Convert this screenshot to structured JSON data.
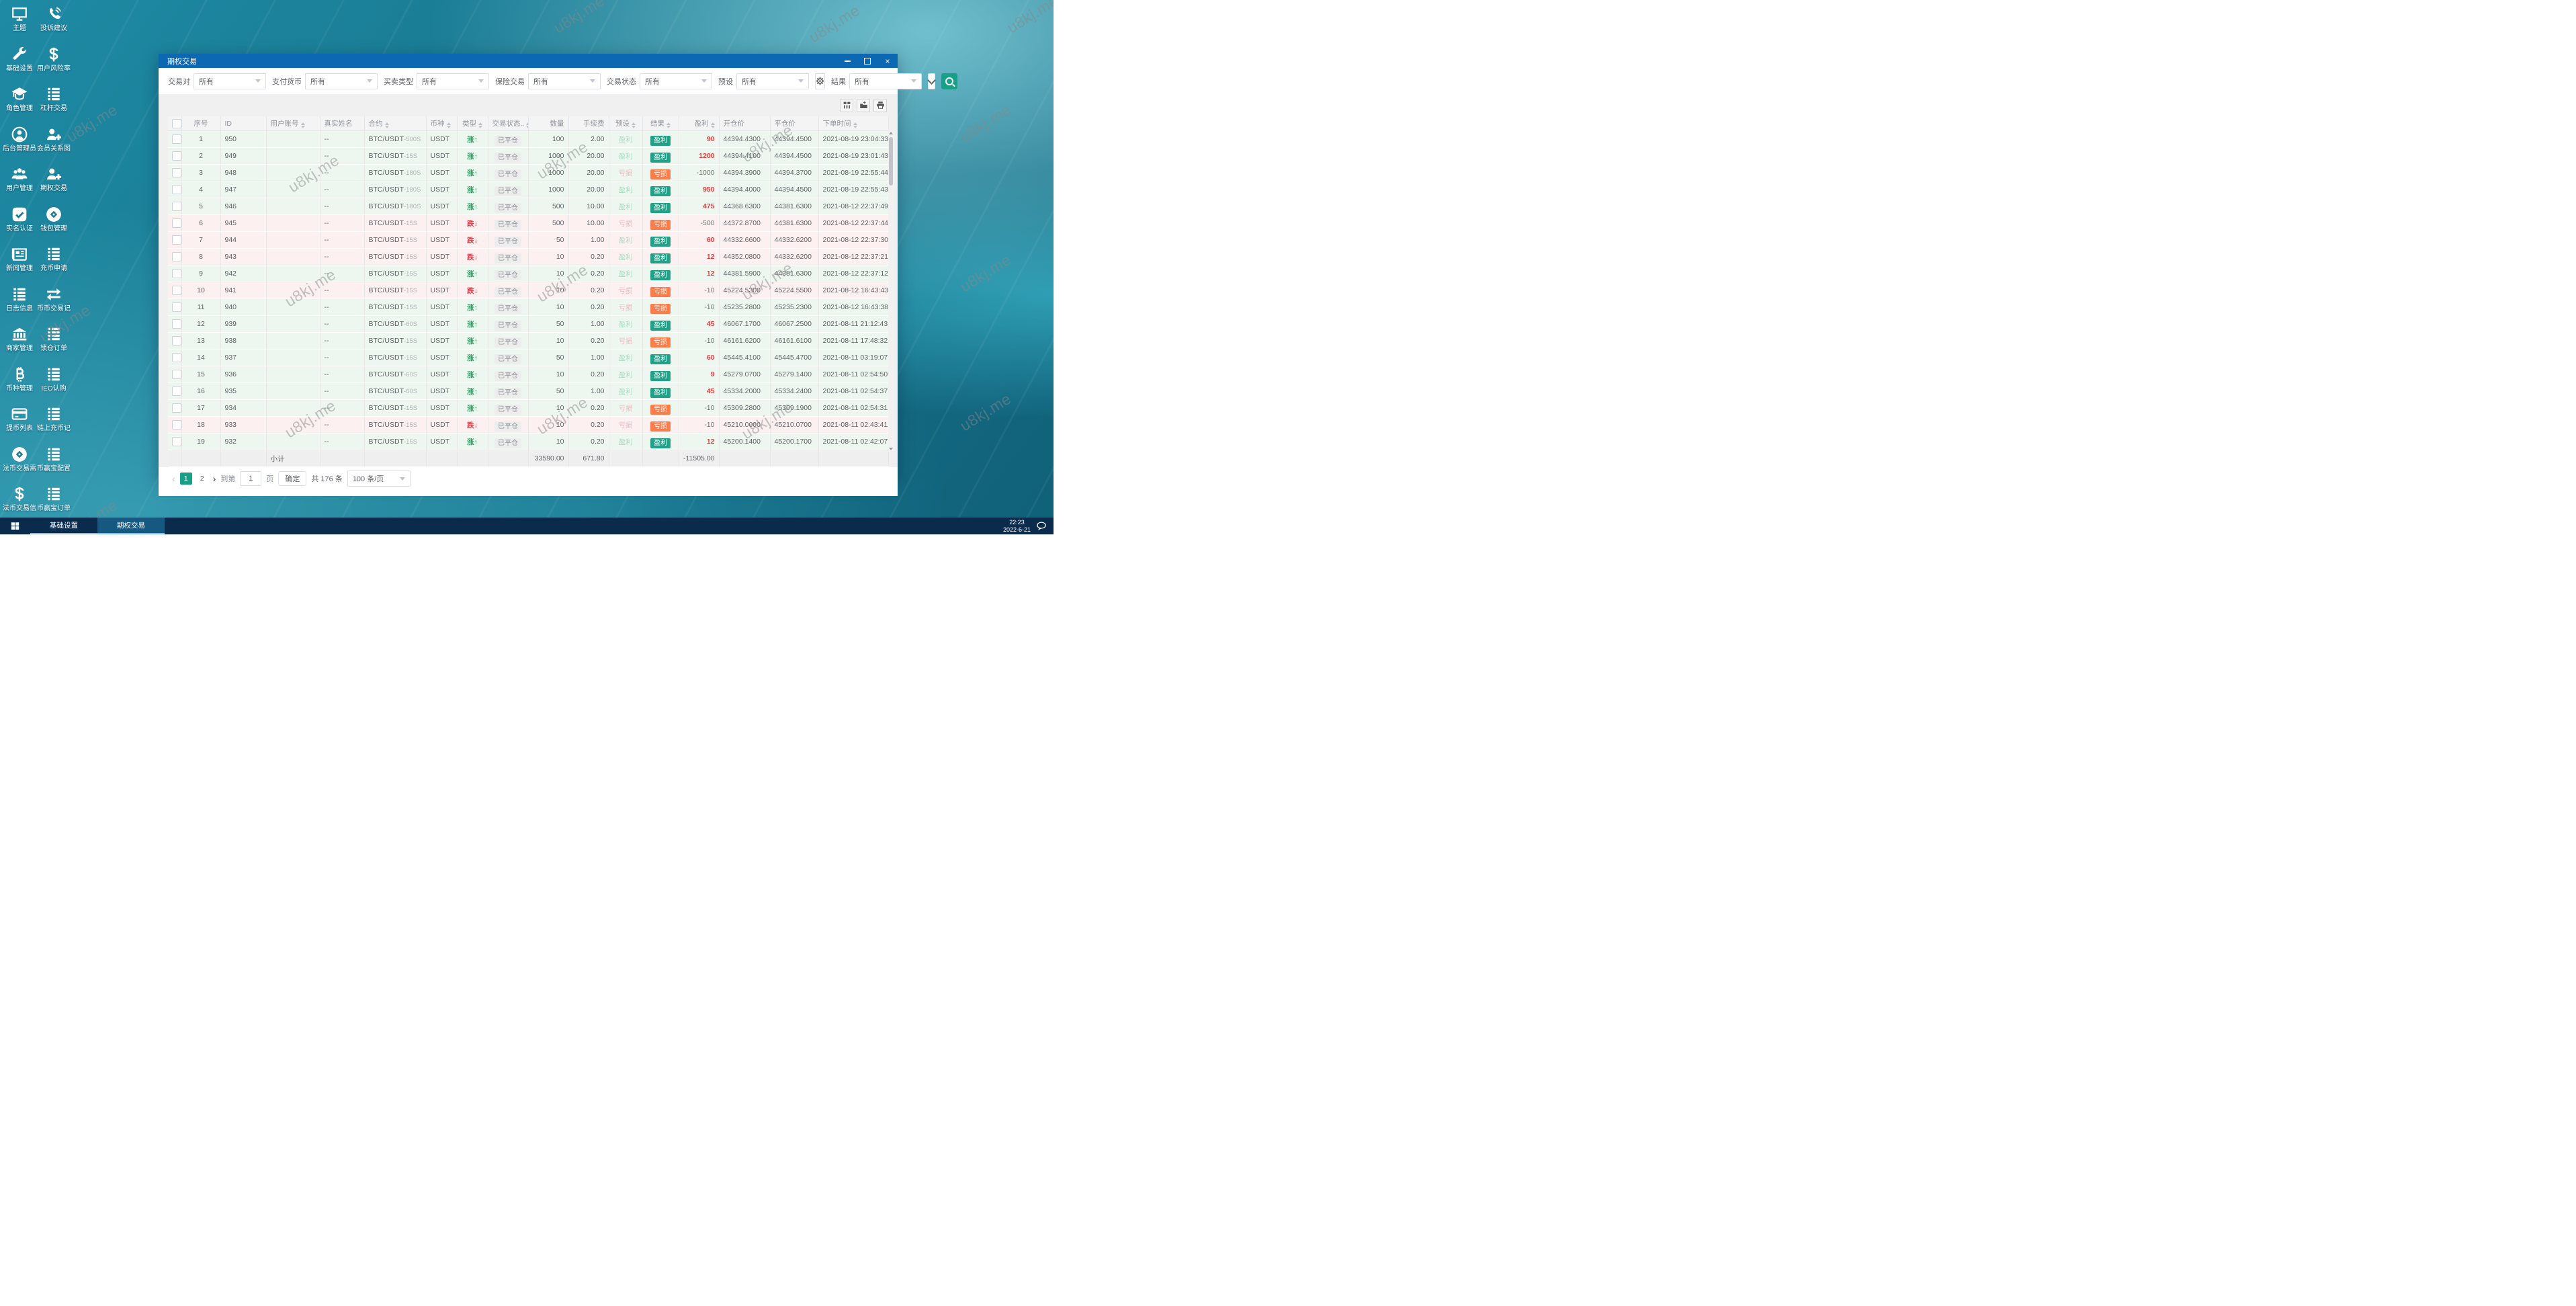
{
  "watermark": {
    "text": "u8kj.me"
  },
  "desktop": {
    "columns": [
      {
        "items": [
          {
            "label": "主题",
            "icon": "monitor"
          },
          {
            "label": "基础设置",
            "icon": "wrench"
          },
          {
            "label": "角色管理",
            "icon": "gradcap"
          },
          {
            "label": "后台管理员",
            "icon": "user-circle"
          },
          {
            "label": "用户管理",
            "icon": "users"
          },
          {
            "label": "实名认证",
            "icon": "check-square"
          },
          {
            "label": "新闻管理",
            "icon": "news"
          },
          {
            "label": "日志信息",
            "icon": "list"
          },
          {
            "label": "商家管理",
            "icon": "bank"
          },
          {
            "label": "币种管理",
            "icon": "bitcoin"
          },
          {
            "label": "提币列表",
            "icon": "card"
          },
          {
            "label": "法币交易需",
            "icon": "coin"
          },
          {
            "label": "法币交易信",
            "icon": "dollar"
          }
        ]
      },
      {
        "items": [
          {
            "label": "投诉建议",
            "icon": "phone"
          },
          {
            "label": "用户风险率",
            "icon": "dollar"
          },
          {
            "label": "杠杆交易",
            "icon": "list"
          },
          {
            "label": "会员关系图",
            "icon": "user-plus"
          },
          {
            "label": "期权交易",
            "icon": "user-plus"
          },
          {
            "label": "钱包管理",
            "icon": "coin"
          },
          {
            "label": "充币申请",
            "icon": "list"
          },
          {
            "label": "币币交易记",
            "icon": "swap"
          },
          {
            "label": "锁仓订单",
            "icon": "list"
          },
          {
            "label": "IEO认购",
            "icon": "list"
          },
          {
            "label": "链上充币记",
            "icon": "list"
          },
          {
            "label": "币赢宝配置",
            "icon": "list"
          },
          {
            "label": "币赢宝订单",
            "icon": "list"
          }
        ]
      }
    ]
  },
  "window": {
    "title": "期权交易"
  },
  "filters": [
    {
      "label": "交易对",
      "value": "所有"
    },
    {
      "label": "支付货币",
      "value": "所有"
    },
    {
      "label": "买卖类型",
      "value": "所有"
    },
    {
      "label": "保险交易",
      "value": "所有"
    },
    {
      "label": "交易状态",
      "value": "所有"
    },
    {
      "label": "预设",
      "value": "所有"
    },
    {
      "label": "结果",
      "value": "所有"
    }
  ],
  "table": {
    "headers": [
      {
        "label": "序号",
        "sortable": false,
        "align": "ac"
      },
      {
        "label": "ID",
        "sortable": false,
        "align": "al"
      },
      {
        "label": "用户账号",
        "sortable": true,
        "align": "al"
      },
      {
        "label": "真实姓名",
        "sortable": false,
        "align": "al"
      },
      {
        "label": "合约",
        "sortable": true,
        "align": "al"
      },
      {
        "label": "币种",
        "sortable": true,
        "align": "al"
      },
      {
        "label": "类型",
        "sortable": true,
        "align": "ac"
      },
      {
        "label": "交易状态..",
        "sortable": true,
        "align": "ac"
      },
      {
        "label": "数量",
        "sortable": false,
        "align": "ar"
      },
      {
        "label": "手续费",
        "sortable": false,
        "align": "ar"
      },
      {
        "label": "预设",
        "sortable": true,
        "align": "ac"
      },
      {
        "label": "结果",
        "sortable": true,
        "align": "ac"
      },
      {
        "label": "盈利",
        "sortable": true,
        "align": "ar"
      },
      {
        "label": "开仓价",
        "sortable": false,
        "align": "al"
      },
      {
        "label": "平仓价",
        "sortable": false,
        "align": "al"
      },
      {
        "label": "下单时间",
        "sortable": true,
        "align": "al"
      }
    ],
    "rows": [
      {
        "seq": "1",
        "id": "950",
        "account": "",
        "name": "--",
        "contract": "BTC/USDT",
        "contract_suffix": "-500S",
        "currency": "USDT",
        "type_label": "涨↑",
        "direction": "up",
        "status": "已平仓",
        "quantity": "100",
        "fee": "2.00",
        "preset": "盈利",
        "result": "盈利",
        "profit": "90",
        "open_price": "44394.4300",
        "close_price": "44394.4500",
        "time": "2021-08-19 23:04:33"
      },
      {
        "seq": "2",
        "id": "949",
        "account": "",
        "name": "--",
        "contract": "BTC/USDT",
        "contract_suffix": "-15S",
        "currency": "USDT",
        "type_label": "涨↑",
        "direction": "up",
        "status": "已平仓",
        "quantity": "1000",
        "fee": "20.00",
        "preset": "盈利",
        "result": "盈利",
        "profit": "1200",
        "open_price": "44394.4100",
        "close_price": "44394.4500",
        "time": "2021-08-19 23:01:43"
      },
      {
        "seq": "3",
        "id": "948",
        "account": "",
        "name": "--",
        "contract": "BTC/USDT",
        "contract_suffix": "-180S",
        "currency": "USDT",
        "type_label": "涨↑",
        "direction": "up",
        "status": "已平仓",
        "quantity": "1000",
        "fee": "20.00",
        "preset": "亏损",
        "result": "亏损",
        "profit": "-1000",
        "open_price": "44394.3900",
        "close_price": "44394.3700",
        "time": "2021-08-19 22:55:44"
      },
      {
        "seq": "4",
        "id": "947",
        "account": "",
        "name": "--",
        "contract": "BTC/USDT",
        "contract_suffix": "-180S",
        "currency": "USDT",
        "type_label": "涨↑",
        "direction": "up",
        "status": "已平仓",
        "quantity": "1000",
        "fee": "20.00",
        "preset": "盈利",
        "result": "盈利",
        "profit": "950",
        "open_price": "44394.4000",
        "close_price": "44394.4500",
        "time": "2021-08-19 22:55:43"
      },
      {
        "seq": "5",
        "id": "946",
        "account": "",
        "name": "--",
        "contract": "BTC/USDT",
        "contract_suffix": "-180S",
        "currency": "USDT",
        "type_label": "涨↑",
        "direction": "up",
        "status": "已平仓",
        "quantity": "500",
        "fee": "10.00",
        "preset": "盈利",
        "result": "盈利",
        "profit": "475",
        "open_price": "44368.6300",
        "close_price": "44381.6300",
        "time": "2021-08-12 22:37:49"
      },
      {
        "seq": "6",
        "id": "945",
        "account": "",
        "name": "--",
        "contract": "BTC/USDT",
        "contract_suffix": "-15S",
        "currency": "USDT",
        "type_label": "跌↓",
        "direction": "down",
        "status": "已平仓",
        "quantity": "500",
        "fee": "10.00",
        "preset": "亏损",
        "result": "亏损",
        "profit": "-500",
        "open_price": "44372.8700",
        "close_price": "44381.6300",
        "time": "2021-08-12 22:37:44"
      },
      {
        "seq": "7",
        "id": "944",
        "account": "",
        "name": "--",
        "contract": "BTC/USDT",
        "contract_suffix": "-15S",
        "currency": "USDT",
        "type_label": "跌↓",
        "direction": "down",
        "status": "已平仓",
        "quantity": "50",
        "fee": "1.00",
        "preset": "盈利",
        "result": "盈利",
        "profit": "60",
        "open_price": "44332.6600",
        "close_price": "44332.6200",
        "time": "2021-08-12 22:37:30"
      },
      {
        "seq": "8",
        "id": "943",
        "account": "",
        "name": "--",
        "contract": "BTC/USDT",
        "contract_suffix": "-15S",
        "currency": "USDT",
        "type_label": "跌↓",
        "direction": "down",
        "status": "已平仓",
        "quantity": "10",
        "fee": "0.20",
        "preset": "盈利",
        "result": "盈利",
        "profit": "12",
        "open_price": "44352.0800",
        "close_price": "44332.6200",
        "time": "2021-08-12 22:37:21"
      },
      {
        "seq": "9",
        "id": "942",
        "account": "",
        "name": "--",
        "contract": "BTC/USDT",
        "contract_suffix": "-15S",
        "currency": "USDT",
        "type_label": "涨↑",
        "direction": "up",
        "status": "已平仓",
        "quantity": "10",
        "fee": "0.20",
        "preset": "盈利",
        "result": "盈利",
        "profit": "12",
        "open_price": "44381.5900",
        "close_price": "44381.6300",
        "time": "2021-08-12 22:37:12"
      },
      {
        "seq": "10",
        "id": "941",
        "account": "",
        "name": "--",
        "contract": "BTC/USDT",
        "contract_suffix": "-15S",
        "currency": "USDT",
        "type_label": "跌↓",
        "direction": "down",
        "status": "已平仓",
        "quantity": "10",
        "fee": "0.20",
        "preset": "亏损",
        "result": "亏损",
        "profit": "-10",
        "open_price": "45224.5300",
        "close_price": "45224.5500",
        "time": "2021-08-12 16:43:43"
      },
      {
        "seq": "11",
        "id": "940",
        "account": "",
        "name": "--",
        "contract": "BTC/USDT",
        "contract_suffix": "-15S",
        "currency": "USDT",
        "type_label": "涨↑",
        "direction": "up",
        "status": "已平仓",
        "quantity": "10",
        "fee": "0.20",
        "preset": "亏损",
        "result": "亏损",
        "profit": "-10",
        "open_price": "45235.2800",
        "close_price": "45235.2300",
        "time": "2021-08-12 16:43:38"
      },
      {
        "seq": "12",
        "id": "939",
        "account": "",
        "name": "--",
        "contract": "BTC/USDT",
        "contract_suffix": "-60S",
        "currency": "USDT",
        "type_label": "涨↑",
        "direction": "up",
        "status": "已平仓",
        "quantity": "50",
        "fee": "1.00",
        "preset": "盈利",
        "result": "盈利",
        "profit": "45",
        "open_price": "46067.1700",
        "close_price": "46067.2500",
        "time": "2021-08-11 21:12:43"
      },
      {
        "seq": "13",
        "id": "938",
        "account": "",
        "name": "--",
        "contract": "BTC/USDT",
        "contract_suffix": "-15S",
        "currency": "USDT",
        "type_label": "涨↑",
        "direction": "up",
        "status": "已平仓",
        "quantity": "10",
        "fee": "0.20",
        "preset": "亏损",
        "result": "亏损",
        "profit": "-10",
        "open_price": "46161.6200",
        "close_price": "46161.6100",
        "time": "2021-08-11 17:48:32"
      },
      {
        "seq": "14",
        "id": "937",
        "account": "",
        "name": "--",
        "contract": "BTC/USDT",
        "contract_suffix": "-15S",
        "currency": "USDT",
        "type_label": "涨↑",
        "direction": "up",
        "status": "已平仓",
        "quantity": "50",
        "fee": "1.00",
        "preset": "盈利",
        "result": "盈利",
        "profit": "60",
        "open_price": "45445.4100",
        "close_price": "45445.4700",
        "time": "2021-08-11 03:19:07"
      },
      {
        "seq": "15",
        "id": "936",
        "account": "",
        "name": "--",
        "contract": "BTC/USDT",
        "contract_suffix": "-60S",
        "currency": "USDT",
        "type_label": "涨↑",
        "direction": "up",
        "status": "已平仓",
        "quantity": "10",
        "fee": "0.20",
        "preset": "盈利",
        "result": "盈利",
        "profit": "9",
        "open_price": "45279.0700",
        "close_price": "45279.1400",
        "time": "2021-08-11 02:54:50"
      },
      {
        "seq": "16",
        "id": "935",
        "account": "",
        "name": "--",
        "contract": "BTC/USDT",
        "contract_suffix": "-60S",
        "currency": "USDT",
        "type_label": "涨↑",
        "direction": "up",
        "status": "已平仓",
        "quantity": "50",
        "fee": "1.00",
        "preset": "盈利",
        "result": "盈利",
        "profit": "45",
        "open_price": "45334.2000",
        "close_price": "45334.2400",
        "time": "2021-08-11 02:54:37"
      },
      {
        "seq": "17",
        "id": "934",
        "account": "",
        "name": "--",
        "contract": "BTC/USDT",
        "contract_suffix": "-15S",
        "currency": "USDT",
        "type_label": "涨↑",
        "direction": "up",
        "status": "已平仓",
        "quantity": "10",
        "fee": "0.20",
        "preset": "亏损",
        "result": "亏损",
        "profit": "-10",
        "open_price": "45309.2800",
        "close_price": "45309.1900",
        "time": "2021-08-11 02:54:31"
      },
      {
        "seq": "18",
        "id": "933",
        "account": "",
        "name": "--",
        "contract": "BTC/USDT",
        "contract_suffix": "-15S",
        "currency": "USDT",
        "type_label": "跌↓",
        "direction": "down",
        "status": "已平仓",
        "quantity": "10",
        "fee": "0.20",
        "preset": "亏损",
        "result": "亏损",
        "profit": "-10",
        "open_price": "45210.0000",
        "close_price": "45210.0700",
        "time": "2021-08-11 02:43:41"
      },
      {
        "seq": "19",
        "id": "932",
        "account": "",
        "name": "--",
        "contract": "BTC/USDT",
        "contract_suffix": "-15S",
        "currency": "USDT",
        "type_label": "涨↑",
        "direction": "up",
        "status": "已平仓",
        "quantity": "10",
        "fee": "0.20",
        "preset": "盈利",
        "result": "盈利",
        "profit": "12",
        "open_price": "45200.1400",
        "close_price": "45200.1700",
        "time": "2021-08-11 02:42:07"
      }
    ],
    "subtotal": {
      "label": "小计",
      "quantity": "33590.00",
      "fee": "671.80",
      "profit": "-11505.00"
    }
  },
  "pagination": {
    "prev": "‹",
    "next": "›",
    "pages": [
      "1",
      "2"
    ],
    "active_page": "1",
    "goto_label": "到第",
    "goto_value": "1",
    "page_unit": "页",
    "confirm_label": "确定",
    "total_label": "共 176 条",
    "page_size": "100 条/页"
  },
  "taskbar": {
    "apps": [
      {
        "label": "基础设置",
        "active": false
      },
      {
        "label": "期权交易",
        "active": true
      }
    ],
    "time": "22:23",
    "date": "2022-6-21"
  },
  "colors": {
    "titlebar_blue": "#0d68b4",
    "accent_teal": "#17a088",
    "result_win": "#23a188",
    "result_loss": "#fb7d4c",
    "profit_red": "#e23c3c",
    "type_up": "#27a35f",
    "type_down": "#d43d47",
    "taskbar_navy": "#0b2b4c",
    "row_up_bg": "#edf7f0",
    "row_down_bg": "#fdf0f1"
  }
}
